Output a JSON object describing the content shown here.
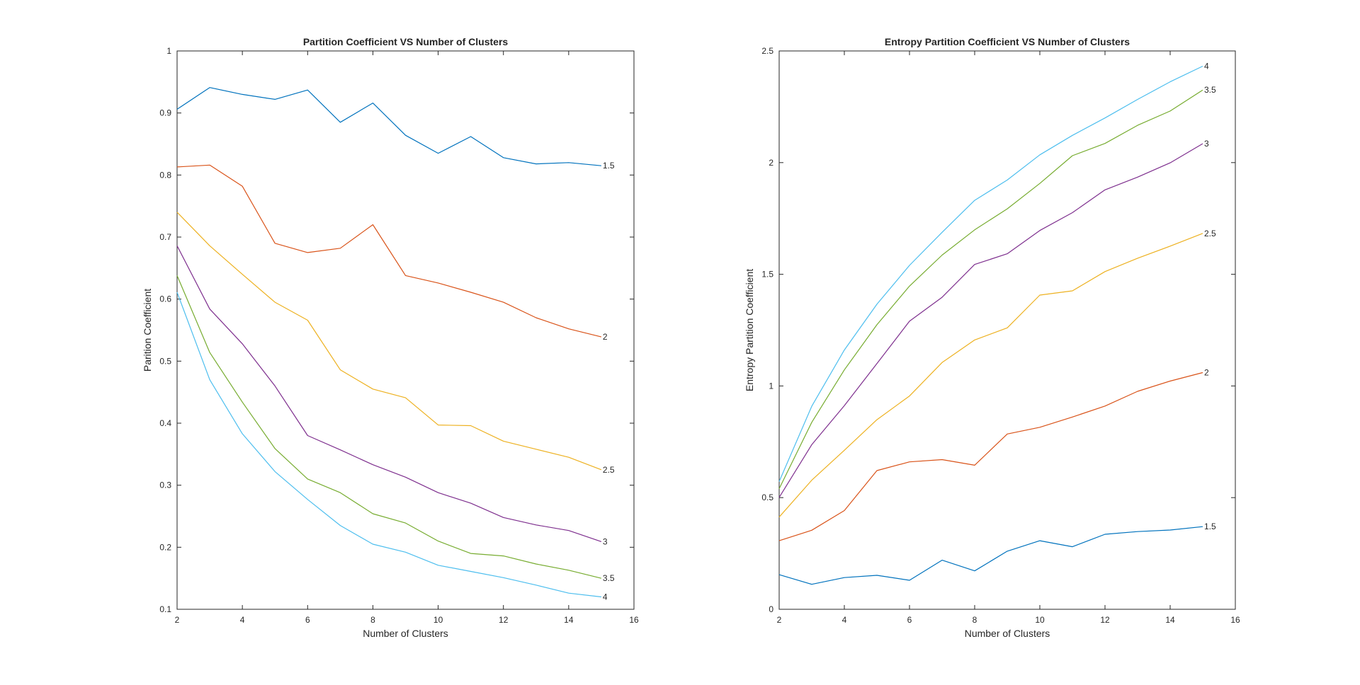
{
  "chart_data": [
    {
      "type": "line",
      "title": "Partition Coefficient VS  Number of Clusters",
      "xlabel": "Number of Clusters",
      "ylabel": "Parition Coefficient",
      "xlim": [
        2,
        16
      ],
      "ylim": [
        0.1,
        1
      ],
      "xticks": [
        "2",
        "4",
        "6",
        "8",
        "10",
        "12",
        "14",
        "16"
      ],
      "yticks": [
        "0.1",
        "0.2",
        "0.3",
        "0.4",
        "0.5",
        "0.6",
        "0.7",
        "0.8",
        "0.9",
        "1"
      ],
      "grid": false,
      "x": [
        2,
        3,
        4,
        5,
        6,
        7,
        8,
        9,
        10,
        11,
        12,
        13,
        14,
        15
      ],
      "series": [
        {
          "name": "1.5",
          "color": "#0072BD",
          "values": [
            0.906,
            0.941,
            0.93,
            0.922,
            0.937,
            0.885,
            0.916,
            0.864,
            0.835,
            0.862,
            0.828,
            0.818,
            0.82,
            0.815
          ]
        },
        {
          "name": "2",
          "color": "#D95319",
          "values": [
            0.813,
            0.816,
            0.782,
            0.69,
            0.675,
            0.682,
            0.72,
            0.638,
            0.626,
            0.611,
            0.595,
            0.57,
            0.552,
            0.539
          ]
        },
        {
          "name": "2.5",
          "color": "#EDB120",
          "values": [
            0.74,
            0.686,
            0.64,
            0.595,
            0.566,
            0.486,
            0.455,
            0.441,
            0.397,
            0.396,
            0.371,
            0.358,
            0.345,
            0.325
          ]
        },
        {
          "name": "3",
          "color": "#7E2F8E",
          "values": [
            0.686,
            0.584,
            0.528,
            0.46,
            0.38,
            0.357,
            0.333,
            0.313,
            0.288,
            0.271,
            0.248,
            0.236,
            0.227,
            0.209
          ]
        },
        {
          "name": "3.5",
          "color": "#77AC30",
          "values": [
            0.638,
            0.514,
            0.434,
            0.359,
            0.31,
            0.288,
            0.254,
            0.239,
            0.21,
            0.19,
            0.186,
            0.173,
            0.163,
            0.15
          ]
        },
        {
          "name": "4",
          "color": "#4DBEEE",
          "values": [
            0.611,
            0.47,
            0.383,
            0.322,
            0.277,
            0.235,
            0.205,
            0.192,
            0.171,
            0.161,
            0.151,
            0.139,
            0.126,
            0.12
          ]
        }
      ]
    },
    {
      "type": "line",
      "title": "Entropy Partition Coefficient VS  Number of Clusters",
      "xlabel": "Number of Clusters",
      "ylabel": "Entropy Partition Coefficient",
      "xlim": [
        2,
        16
      ],
      "ylim": [
        0,
        2.5
      ],
      "xticks": [
        "2",
        "4",
        "6",
        "8",
        "10",
        "12",
        "14",
        "16"
      ],
      "yticks": [
        "0",
        "0.5",
        "1",
        "1.5",
        "2",
        "2.5"
      ],
      "grid": false,
      "x": [
        2,
        3,
        4,
        5,
        6,
        7,
        8,
        9,
        10,
        11,
        12,
        13,
        14,
        15
      ],
      "series": [
        {
          "name": "1.5",
          "color": "#0072BD",
          "values": [
            0.155,
            0.112,
            0.142,
            0.152,
            0.13,
            0.22,
            0.172,
            0.26,
            0.307,
            0.28,
            0.336,
            0.348,
            0.355,
            0.37
          ]
        },
        {
          "name": "2",
          "color": "#D95319",
          "values": [
            0.307,
            0.354,
            0.442,
            0.621,
            0.66,
            0.67,
            0.645,
            0.785,
            0.815,
            0.861,
            0.91,
            0.976,
            1.022,
            1.06
          ]
        },
        {
          "name": "2.5",
          "color": "#EDB120",
          "values": [
            0.413,
            0.578,
            0.712,
            0.849,
            0.955,
            1.105,
            1.206,
            1.26,
            1.407,
            1.426,
            1.512,
            1.572,
            1.626,
            1.683
          ]
        },
        {
          "name": "3",
          "color": "#7E2F8E",
          "values": [
            0.501,
            0.737,
            0.912,
            1.1,
            1.29,
            1.397,
            1.544,
            1.592,
            1.696,
            1.776,
            1.878,
            1.935,
            1.999,
            2.085
          ]
        },
        {
          "name": "3.5",
          "color": "#77AC30",
          "values": [
            0.54,
            0.837,
            1.072,
            1.274,
            1.447,
            1.586,
            1.699,
            1.793,
            1.907,
            2.031,
            2.086,
            2.167,
            2.231,
            2.325
          ]
        },
        {
          "name": "4",
          "color": "#4DBEEE",
          "values": [
            0.572,
            0.909,
            1.161,
            1.366,
            1.54,
            1.688,
            1.831,
            1.922,
            2.035,
            2.122,
            2.2,
            2.283,
            2.362,
            2.432
          ]
        }
      ]
    }
  ]
}
